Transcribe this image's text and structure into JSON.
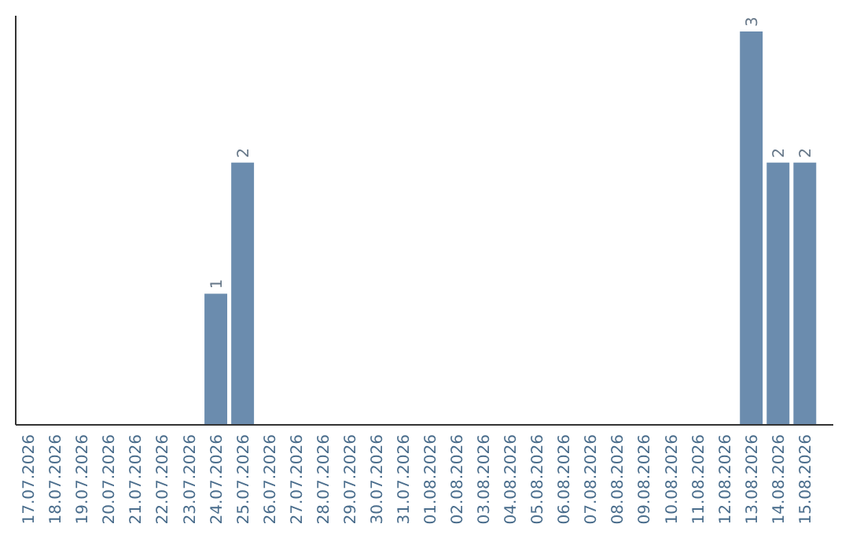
{
  "chart_data": {
    "type": "bar",
    "categories": [
      "17.07.2026",
      "18.07.2026",
      "19.07.2026",
      "20.07.2026",
      "21.07.2026",
      "22.07.2026",
      "23.07.2026",
      "24.07.2026",
      "25.07.2026",
      "26.07.2026",
      "27.07.2026",
      "28.07.2026",
      "29.07.2026",
      "30.07.2026",
      "31.07.2026",
      "01.08.2026",
      "02.08.2026",
      "03.08.2026",
      "04.08.2026",
      "05.08.2026",
      "06.08.2026",
      "07.08.2026",
      "08.08.2026",
      "09.08.2026",
      "10.08.2026",
      "11.08.2026",
      "12.08.2026",
      "13.08.2026",
      "14.08.2026",
      "15.08.2026"
    ],
    "values": [
      0,
      0,
      0,
      0,
      0,
      0,
      0,
      1,
      2,
      0,
      0,
      0,
      0,
      0,
      0,
      0,
      0,
      0,
      0,
      0,
      0,
      0,
      0,
      0,
      0,
      0,
      0,
      3,
      2,
      2
    ],
    "value_labels": [
      null,
      null,
      null,
      null,
      null,
      null,
      null,
      "1",
      "2",
      null,
      null,
      null,
      null,
      null,
      null,
      null,
      null,
      null,
      null,
      null,
      null,
      null,
      null,
      null,
      null,
      null,
      null,
      "3",
      "2",
      "2"
    ],
    "color": "#6b8cae",
    "ylim": [
      0,
      3.12
    ],
    "tick_labels": "x"
  }
}
